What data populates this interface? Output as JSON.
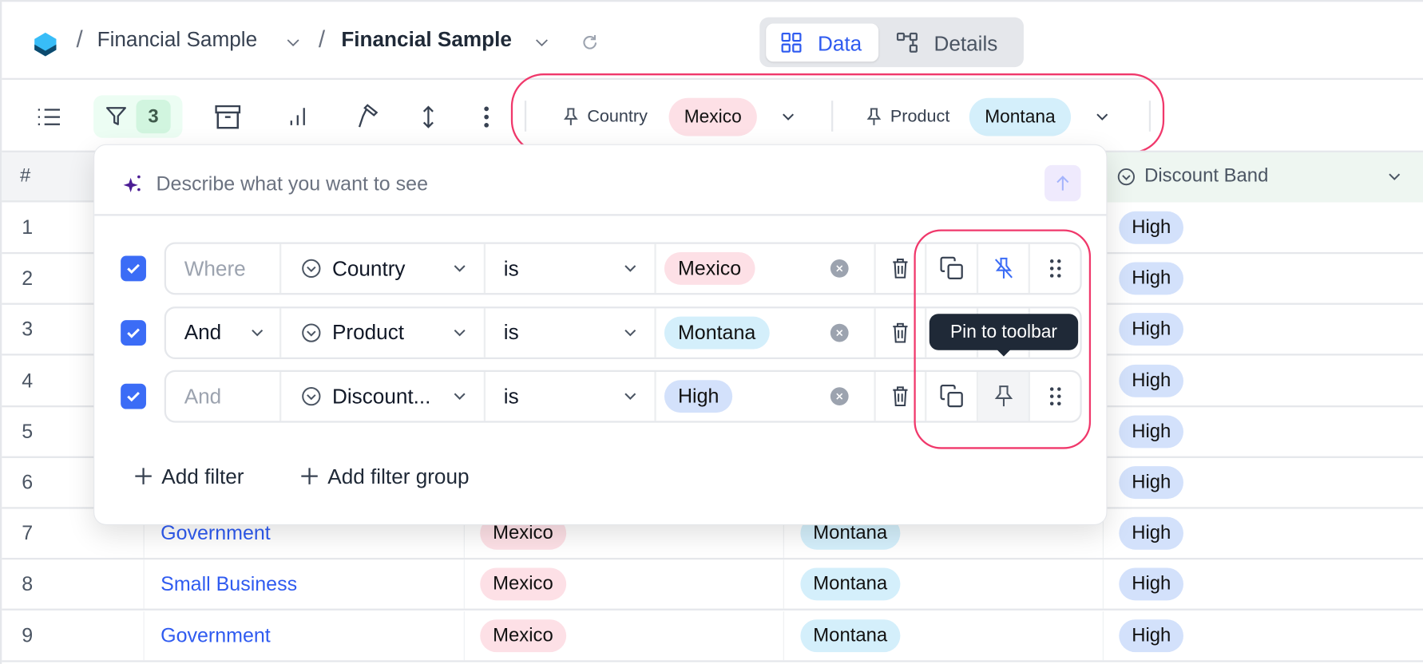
{
  "header": {
    "breadcrumb": [
      {
        "label": "Financial Sample"
      },
      {
        "label": "Financial Sample"
      }
    ],
    "views": [
      {
        "label": "Data",
        "active": true
      },
      {
        "label": "Details",
        "active": false
      }
    ]
  },
  "toolbar": {
    "filter_count": "3",
    "pinned_filters": [
      {
        "field": "Country",
        "value": "Mexico",
        "color": "#fde0e6"
      },
      {
        "field": "Product",
        "value": "Montana",
        "color": "#d4effb"
      }
    ]
  },
  "table": {
    "columns": {
      "index": "#",
      "discount_band": "Discount Band"
    },
    "rows": [
      {
        "n": "1",
        "segment": "",
        "country": "",
        "product": "",
        "band": "High"
      },
      {
        "n": "2",
        "segment": "",
        "country": "",
        "product": "",
        "band": "High"
      },
      {
        "n": "3",
        "segment": "",
        "country": "",
        "product": "",
        "band": "High"
      },
      {
        "n": "4",
        "segment": "",
        "country": "",
        "product": "",
        "band": "High"
      },
      {
        "n": "5",
        "segment": "",
        "country": "",
        "product": "",
        "band": "High"
      },
      {
        "n": "6",
        "segment": "",
        "country": "",
        "product": "",
        "band": "High"
      },
      {
        "n": "7",
        "segment": "Government",
        "country": "Mexico",
        "product": "Montana",
        "band": "High"
      },
      {
        "n": "8",
        "segment": "Small Business",
        "country": "Mexico",
        "product": "Montana",
        "band": "High"
      },
      {
        "n": "9",
        "segment": "Government",
        "country": "Mexico",
        "product": "Montana",
        "band": "High"
      }
    ]
  },
  "filter_panel": {
    "ai_placeholder": "Describe what you want to see",
    "filters": [
      {
        "conjunction": "Where",
        "field": "Country",
        "operator": "is",
        "value": "Mexico",
        "checked": true,
        "pinned": true
      },
      {
        "conjunction": "And",
        "field": "Product",
        "operator": "is",
        "value": "Montana",
        "checked": true,
        "pinned": true
      },
      {
        "conjunction": "And",
        "field": "Discount...",
        "operator": "is",
        "value": "High",
        "checked": true,
        "pinned": false
      }
    ],
    "add_filter": "Add filter",
    "add_filter_group": "Add filter group",
    "tooltip": "Pin to toolbar"
  }
}
